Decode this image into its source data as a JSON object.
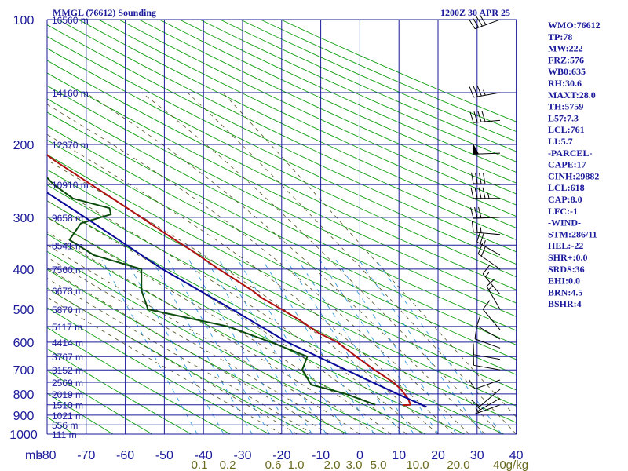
{
  "chart_data": {
    "type": "line",
    "title": "MMGL (76612) Sounding",
    "time": "1200Z 30 APR 25",
    "pressure_levels": [
      100,
      200,
      300,
      400,
      500,
      600,
      700,
      800,
      900,
      1000
    ],
    "height_labels": [
      {
        "p": 100,
        "text": "16560 m"
      },
      {
        "p": 150,
        "text": "14160 m"
      },
      {
        "p": 200,
        "text": "12370 m"
      },
      {
        "p": 250,
        "text": "10910 m"
      },
      {
        "p": 300,
        "text": "9658 m"
      },
      {
        "p": 350,
        "text": "8541 m"
      },
      {
        "p": 400,
        "text": "7560 m"
      },
      {
        "p": 450,
        "text": "6673 m"
      },
      {
        "p": 500,
        "text": "5870 m"
      },
      {
        "p": 550,
        "text": "5117 m"
      },
      {
        "p": 600,
        "text": "4414 m"
      },
      {
        "p": 650,
        "text": "3767 m"
      },
      {
        "p": 700,
        "text": "3152 m"
      },
      {
        "p": 750,
        "text": "2569 m"
      },
      {
        "p": 800,
        "text": "2019 m"
      },
      {
        "p": 850,
        "text": "1510 m"
      },
      {
        "p": 900,
        "text": "1021 m"
      },
      {
        "p": 950,
        "text": "556 m"
      },
      {
        "p": 1000,
        "text": "111 m"
      }
    ],
    "temp_axis_label": "mb",
    "temp_ticks": [
      -80,
      -70,
      -60,
      -50,
      -40,
      -30,
      -20,
      -10,
      0,
      10,
      20,
      30,
      40
    ],
    "mixing_ratio_labels": [
      "0.1",
      "0.2",
      "0.6",
      "1.0",
      "2.0",
      "3.0",
      "5.0",
      "10.0",
      "20.0"
    ],
    "mixing_ratio_unit": "40g/kg",
    "xlim": [
      -80,
      40
    ],
    "ylim": [
      100,
      1000
    ],
    "series": [
      {
        "name": "temperature",
        "color": "#b01010",
        "points": [
          [
            100,
            -73.2
          ],
          [
            111,
            -69.4
          ],
          [
            119,
            -73.7
          ],
          [
            130,
            -76.3
          ],
          [
            150,
            -72.5
          ],
          [
            170,
            -65.3
          ],
          [
            190,
            -59.4
          ],
          [
            200,
            -57.8
          ],
          [
            220,
            -53.3
          ],
          [
            250,
            -46.4
          ],
          [
            280,
            -40.2
          ],
          [
            300,
            -36.5
          ],
          [
            330,
            -31.5
          ],
          [
            360,
            -26.7
          ],
          [
            400,
            -21.3
          ],
          [
            450,
            -14.7
          ],
          [
            470,
            -12.8
          ],
          [
            500,
            -8.8
          ],
          [
            530,
            -5.3
          ],
          [
            570,
            -1.5
          ],
          [
            600,
            2.5
          ],
          [
            650,
            6.0
          ],
          [
            700,
            9.5
          ],
          [
            750,
            13.2
          ],
          [
            780,
            14.5
          ],
          [
            820,
            15.5
          ],
          [
            850,
            15.6
          ],
          [
            852,
            13.5
          ]
        ]
      },
      {
        "name": "dewpoint",
        "color": "#0a4a0a",
        "points": [
          [
            150,
            -77.8
          ],
          [
            180,
            -72.5
          ],
          [
            190,
            -69.0
          ],
          [
            200,
            -64.6
          ],
          [
            220,
            -59.5
          ],
          [
            250,
            -56.0
          ],
          [
            270,
            -52.3
          ],
          [
            285,
            -43.8
          ],
          [
            295,
            -44.0
          ],
          [
            310,
            -52.5
          ],
          [
            340,
            -56.9
          ],
          [
            370,
            -52.0
          ],
          [
            400,
            -41.1
          ],
          [
            450,
            -43.0
          ],
          [
            500,
            -43.0
          ],
          [
            550,
            -24.1
          ],
          [
            600,
            -14.5
          ],
          [
            650,
            -6.5
          ],
          [
            700,
            -9.0
          ],
          [
            760,
            -8.0
          ],
          [
            800,
            0.0
          ],
          [
            850,
            6.6
          ]
        ]
      },
      {
        "name": "parcel",
        "color": "#0a0a9a",
        "points": [
          [
            160,
            -90.0
          ],
          [
            200,
            -73.0
          ],
          [
            300,
            -50.9
          ],
          [
            400,
            -35.7
          ],
          [
            500,
            -21.5
          ],
          [
            600,
            -10.3
          ],
          [
            700,
            2.2
          ],
          [
            800,
            13.2
          ],
          [
            860,
            19.5
          ]
        ]
      }
    ],
    "winds": [
      {
        "p": 100,
        "dir": 250,
        "spd": 40
      },
      {
        "p": 150,
        "dir": 260,
        "spd": 35
      },
      {
        "p": 175,
        "dir": 265,
        "spd": 40
      },
      {
        "p": 210,
        "dir": 268,
        "spd": 50
      },
      {
        "p": 250,
        "dir": 272,
        "spd": 40
      },
      {
        "p": 270,
        "dir": 270,
        "spd": 45
      },
      {
        "p": 300,
        "dir": 268,
        "spd": 30
      },
      {
        "p": 330,
        "dir": 275,
        "spd": 25
      },
      {
        "p": 370,
        "dir": 300,
        "spd": 25
      },
      {
        "p": 400,
        "dir": 305,
        "spd": 20
      },
      {
        "p": 460,
        "dir": 320,
        "spd": 15
      },
      {
        "p": 500,
        "dir": 330,
        "spd": 15
      },
      {
        "p": 560,
        "dir": 320,
        "spd": 10
      },
      {
        "p": 590,
        "dir": 300,
        "spd": 10
      },
      {
        "p": 620,
        "dir": 290,
        "spd": 10
      },
      {
        "p": 660,
        "dir": 280,
        "spd": 10
      },
      {
        "p": 700,
        "dir": 280,
        "spd": 10
      },
      {
        "p": 740,
        "dir": 250,
        "spd": 10
      },
      {
        "p": 780,
        "dir": 230,
        "spd": 10
      },
      {
        "p": 820,
        "dir": 240,
        "spd": 5
      },
      {
        "p": 850,
        "dir": 250,
        "spd": 5
      }
    ],
    "indices": [
      "WMO:76612",
      "TP:78",
      "MW:222",
      "FRZ:576",
      "WB0:635",
      "RH:30.6",
      "MAXT:28.0",
      "TH:5759",
      "L57:7.3",
      "LCL:761",
      "LI:5.7",
      "-PARCEL-",
      "CAPE:17",
      "CINH:29882",
      "LCL:618",
      "CAP:8.0",
      "LFC:-1",
      "-WIND-",
      "STM:286/11",
      "HEL:-22",
      "SHR+:0.0",
      "SRDS:36",
      "EHI:0.0",
      "BRN:4.5",
      "BSHR:4"
    ],
    "colors": {
      "grid": "#1a1a9a",
      "dry_adiabat": "#10a010",
      "moist_adiabat": "#505020",
      "mixing_ratio": "#3399dd",
      "text": "#1a1a9a",
      "mixing_ratio_text": "#6a6a20"
    }
  }
}
